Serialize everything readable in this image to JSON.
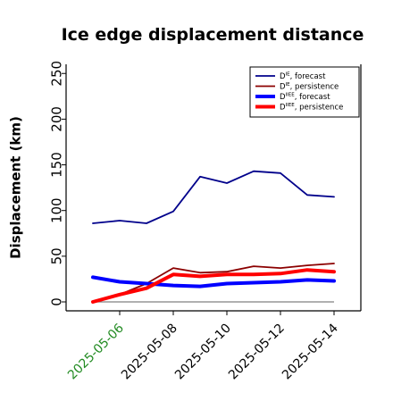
{
  "chart_data": {
    "type": "line",
    "title": "Ice edge displacement distance",
    "xlabel": "",
    "ylabel": "Displacement (km)",
    "x": [
      "2025-05-05",
      "2025-05-06",
      "2025-05-07",
      "2025-05-08",
      "2025-05-09",
      "2025-05-10",
      "2025-05-11",
      "2025-05-12",
      "2025-05-13",
      "2025-05-14"
    ],
    "xticks": [
      "2025-05-06",
      "2025-05-08",
      "2025-05-10",
      "2025-05-12",
      "2025-05-14"
    ],
    "xtick_colors": {
      "2025-05-06": "#228b22"
    },
    "xlim": [
      "2025-05-04",
      "2025-05-15"
    ],
    "ylim": [
      0,
      250
    ],
    "yticks": [
      0,
      50,
      100,
      150,
      200,
      250
    ],
    "grid": false,
    "legend_position": "top-right",
    "series": [
      {
        "name": "DIE, forecast",
        "base": "D",
        "sup": "IE",
        "suffix": ", forecast",
        "color": "#00008b",
        "width": "thin",
        "values": [
          86,
          89,
          86,
          99,
          137,
          130,
          143,
          141,
          117,
          115
        ]
      },
      {
        "name": "DIE, persistence",
        "base": "D",
        "sup": "IE",
        "suffix": ", persistence",
        "color": "#8b0000",
        "width": "thin",
        "values": [
          0,
          8,
          20,
          37,
          32,
          33,
          39,
          37,
          40,
          42
        ]
      },
      {
        "name": "DIIEE, forecast",
        "base": "D",
        "sup": "IIEE",
        "suffix": ", forecast",
        "color": "#0000ff",
        "width": "thick",
        "values": [
          27,
          22,
          20,
          18,
          17,
          20,
          21,
          22,
          24,
          23
        ]
      },
      {
        "name": "DIIEE, persistence",
        "base": "D",
        "sup": "IIEE",
        "suffix": ", persistence",
        "color": "#ff0000",
        "width": "thick",
        "values": [
          0,
          8,
          15,
          30,
          28,
          30,
          30,
          31,
          35,
          33
        ]
      }
    ],
    "baseline": {
      "value": 0,
      "color": "#808080"
    }
  }
}
